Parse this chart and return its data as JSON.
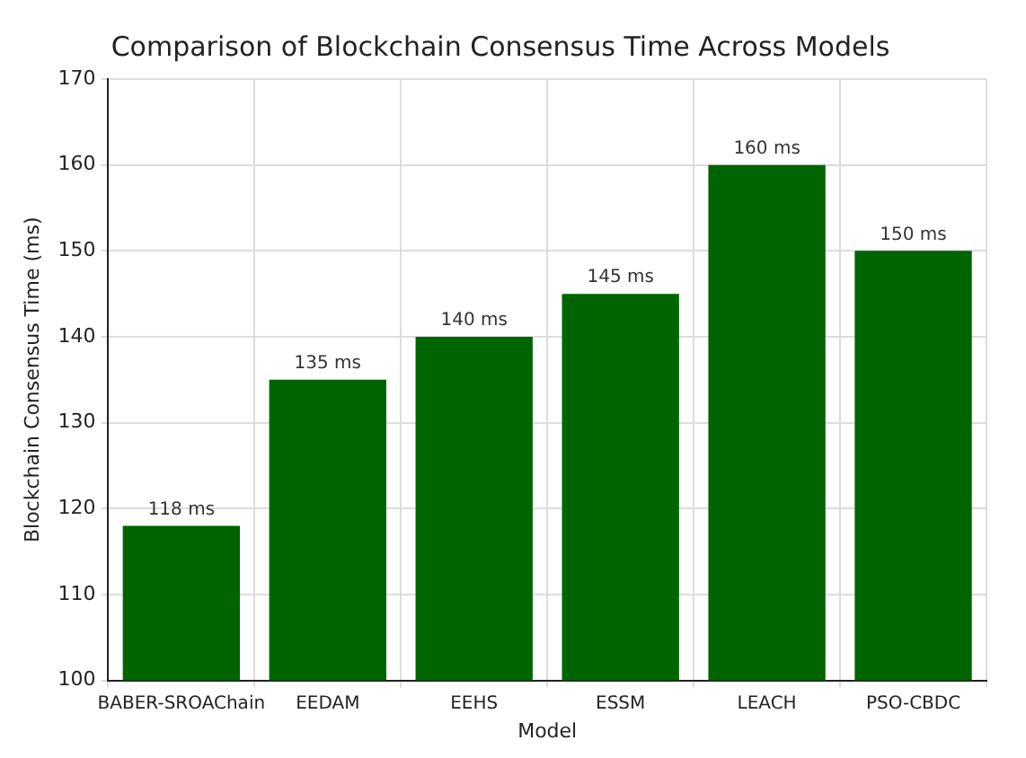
{
  "chart_data": {
    "type": "bar",
    "title": "Comparison of Blockchain Consensus Time Across Models",
    "xlabel": "Model",
    "ylabel": "Blockchain Consensus Time (ms)",
    "categories": [
      "BABER-SROAChain",
      "EEDAM",
      "EEHS",
      "ESSM",
      "LEACH",
      "PSO-CBDC"
    ],
    "values": [
      118,
      135,
      140,
      145,
      160,
      150
    ],
    "value_labels": [
      "118 ms",
      "135 ms",
      "140 ms",
      "145 ms",
      "160 ms",
      "150 ms"
    ],
    "color": "#006400",
    "ylim": [
      100,
      170
    ],
    "yticks": [
      100,
      110,
      120,
      130,
      140,
      150,
      160,
      170
    ],
    "grid": true
  }
}
